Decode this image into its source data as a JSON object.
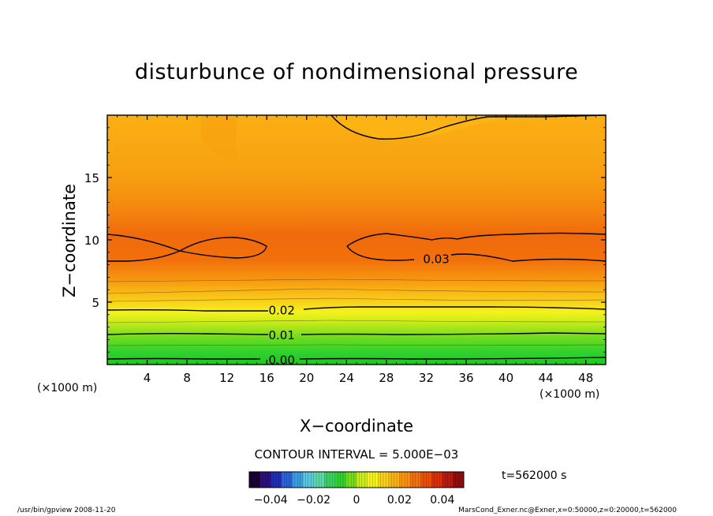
{
  "title": "disturbunce of nondimensional pressure",
  "colors": {
    "colorbar": [
      "#1a0033",
      "#2b0f7a",
      "#1f2fb5",
      "#2a63d6",
      "#3d9be0",
      "#56c7e0",
      "#5fd6a8",
      "#3ccf63",
      "#2fd12e",
      "#74dc1c",
      "#c8ec1a",
      "#f4f21c",
      "#f8d21a",
      "#f8b214",
      "#f6920f",
      "#f2700c",
      "#ea4f0a",
      "#d9300a",
      "#b81a10",
      "#8f0d0d"
    ]
  },
  "chart_data": {
    "type": "contour",
    "title": "disturbunce of nondimensional pressure",
    "xlabel": "X−coordinate",
    "ylabel": "Z−coordinate",
    "x_unit_left": "(×1000 m)",
    "x_unit_right": "(×1000 m)",
    "xlim": [
      0,
      50
    ],
    "ylim": [
      0,
      20
    ],
    "x_ticks": [
      4,
      8,
      12,
      16,
      20,
      24,
      28,
      32,
      36,
      40,
      44,
      48
    ],
    "y_ticks": [
      5,
      10,
      15
    ],
    "contour_interval_text": "CONTOUR INTERVAL = 5.000E−03",
    "contour_interval": 0.005,
    "contour_labels": [
      {
        "text": "0.03",
        "x": 33,
        "z": 8.5
      },
      {
        "text": "0.02",
        "x": 17.5,
        "z": 4.4
      },
      {
        "text": "0.01",
        "x": 17.5,
        "z": 2.4
      },
      {
        "text": "0.00",
        "x": 17.5,
        "z": 0.4
      }
    ],
    "colorbar": {
      "range": [
        -0.05,
        0.05
      ],
      "ticks": [
        "−0.04",
        "−0.02",
        "0",
        "0.02",
        "0.04"
      ],
      "tick_values": [
        -0.04,
        -0.02,
        0,
        0.02,
        0.04
      ]
    },
    "time_label": "t=562000 s"
  },
  "footer": {
    "left": "/usr/bin/gpview   2008-11-20",
    "right": "MarsCond_Exner.nc@Exner,x=0:50000,z=0:20000,t=562000"
  }
}
